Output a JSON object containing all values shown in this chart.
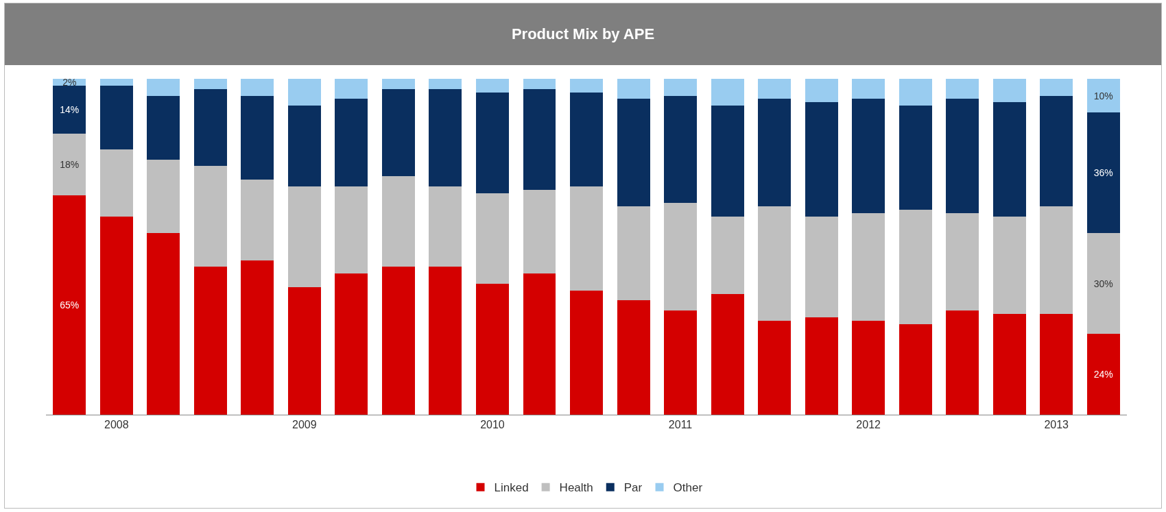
{
  "chart_data": {
    "type": "bar",
    "title": "Product Mix by APE",
    "stacked": true,
    "categories": [
      null,
      "2008",
      null,
      null,
      null,
      "2009",
      null,
      null,
      null,
      "2010",
      null,
      null,
      null,
      "2011",
      null,
      null,
      null,
      "2012",
      null,
      null,
      null,
      "2013",
      null
    ],
    "series": [
      {
        "name": "Linked",
        "color": "#d40000",
        "values": [
          65.4,
          59,
          54,
          44,
          46,
          38,
          42,
          44,
          44,
          39,
          42,
          37,
          34,
          31,
          36,
          28,
          29,
          28,
          27,
          31,
          30,
          30,
          24
        ],
        "value_labels": [
          "65%",
          null,
          null,
          null,
          null,
          null,
          null,
          null,
          null,
          null,
          null,
          null,
          null,
          null,
          null,
          null,
          null,
          null,
          null,
          null,
          null,
          null,
          "24%"
        ]
      },
      {
        "name": "Health",
        "color": "#bfbfbf",
        "values": [
          18.3,
          20,
          22,
          30,
          24,
          30,
          26,
          27,
          24,
          27,
          25,
          31,
          28,
          32,
          23,
          34,
          30,
          32,
          34,
          29,
          29,
          32,
          30
        ],
        "value_labels": [
          "18%",
          null,
          null,
          null,
          null,
          null,
          null,
          null,
          null,
          null,
          null,
          null,
          null,
          null,
          null,
          null,
          null,
          null,
          null,
          null,
          null,
          null,
          "30%"
        ]
      },
      {
        "name": "Par",
        "color": "#0a2f5f",
        "values": [
          14.2,
          19,
          19,
          23,
          25,
          24,
          26,
          26,
          29,
          30,
          30,
          28,
          32,
          32,
          33,
          32,
          34,
          34,
          31,
          34,
          34,
          33,
          36
        ],
        "value_labels": [
          "14%",
          null,
          null,
          null,
          null,
          null,
          null,
          null,
          null,
          null,
          null,
          null,
          null,
          null,
          null,
          null,
          null,
          null,
          null,
          null,
          null,
          null,
          "36%"
        ]
      },
      {
        "name": "Other",
        "color": "#99ccf0",
        "values": [
          2.1,
          2,
          5,
          3,
          5,
          8,
          6,
          3,
          3,
          4,
          3,
          4,
          6,
          5,
          8,
          6,
          7,
          6,
          8,
          6,
          7,
          5,
          10
        ],
        "value_labels": [
          "2%",
          null,
          null,
          null,
          null,
          null,
          null,
          null,
          null,
          null,
          null,
          null,
          null,
          null,
          null,
          null,
          null,
          null,
          null,
          null,
          null,
          null,
          "10%"
        ]
      }
    ],
    "ylim": [
      0,
      100
    ],
    "tick_labels": "x",
    "legend": "bottom"
  }
}
